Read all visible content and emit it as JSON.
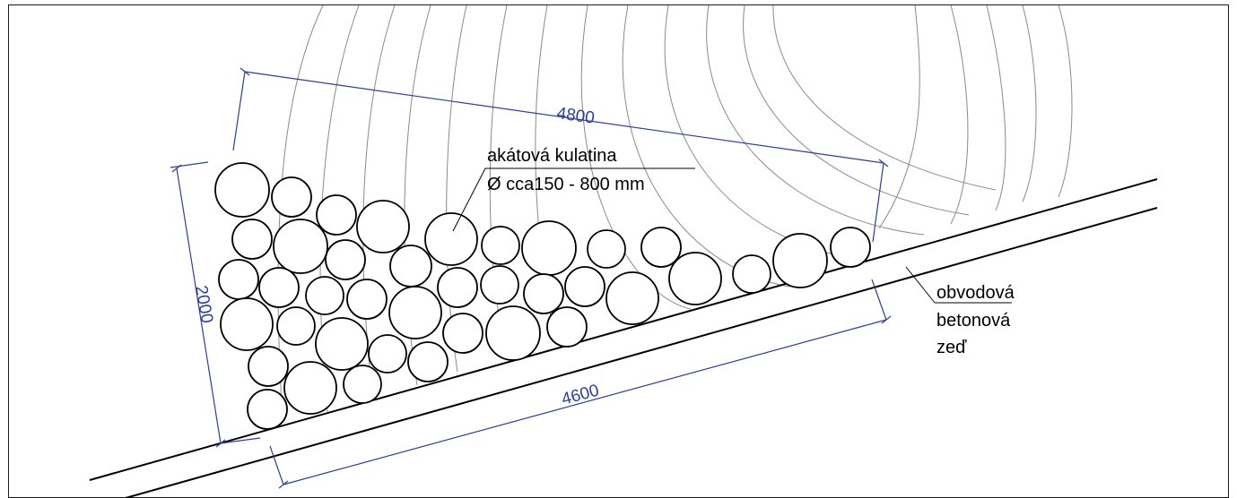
{
  "dimensions": {
    "top_length": "4800",
    "bottom_length": "4600",
    "height": "2000"
  },
  "labels": {
    "logs_line1": "akátová kulatina",
    "logs_line2": "Ø cca150 - 800 mm",
    "wall_line1": "obvodová",
    "wall_line2": "betonová",
    "wall_line3": "zeď"
  },
  "colors": {
    "dimension": "#2b3f9e",
    "contour": "#8a8a8a",
    "outline": "#000000"
  }
}
